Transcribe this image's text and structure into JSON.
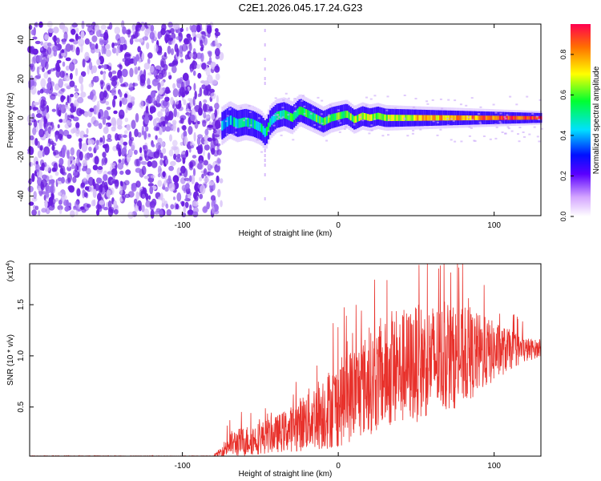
{
  "title": "C2E1.2026.045.17.24.G23",
  "chart_data": [
    {
      "type": "heatmap",
      "name": "spectrogram",
      "xlabel": "Height of straight line (km)",
      "ylabel": "Frequency (Hz)",
      "xlim": [
        -198,
        130
      ],
      "ylim": [
        -50,
        48
      ],
      "xticks": [
        -100,
        0,
        100
      ],
      "yticks": [
        40,
        20,
        0,
        -20,
        -40
      ],
      "noise_region_x": [
        -198,
        -75
      ],
      "signal_onset_x": -75,
      "dropout_line_x": -47,
      "centerline_freq": [
        [
          -75,
          -4
        ],
        [
          -70,
          -1
        ],
        [
          -65,
          -3
        ],
        [
          -60,
          -2
        ],
        [
          -55,
          -3
        ],
        [
          -50,
          -5
        ],
        [
          -47,
          -8
        ],
        [
          -44,
          -2
        ],
        [
          -40,
          1
        ],
        [
          -35,
          2
        ],
        [
          -30,
          0
        ],
        [
          -25,
          4
        ],
        [
          -20,
          2
        ],
        [
          -15,
          0
        ],
        [
          -10,
          -2
        ],
        [
          -5,
          0
        ],
        [
          0,
          1
        ],
        [
          5,
          2
        ],
        [
          10,
          -1
        ],
        [
          15,
          1
        ],
        [
          20,
          0
        ],
        [
          25,
          1
        ],
        [
          30,
          0
        ],
        [
          40,
          0
        ],
        [
          60,
          0
        ],
        [
          80,
          0
        ],
        [
          100,
          0
        ],
        [
          130,
          0
        ]
      ]
    },
    {
      "type": "line",
      "name": "snr",
      "xlabel": "Height of straight line (km)",
      "ylabel": "SNR (10 * v/v)",
      "multiplier": "(x10",
      "multiplier_exp": "4",
      "multiplier_close": ")",
      "xlim": [
        -198,
        130
      ],
      "ylim": [
        0.02,
        1.9
      ],
      "xticks": [
        -100,
        0,
        100
      ],
      "yticks": [
        0.5,
        1.0,
        1.5
      ],
      "series": [
        {
          "name": "SNR",
          "color": "#e8312b",
          "envelope": {
            "x": [
              -198,
              -80,
              -75,
              -70,
              -60,
              -50,
              -40,
              -30,
              -20,
              -10,
              0,
              10,
              20,
              30,
              40,
              50,
              60,
              70,
              80,
              90,
              100,
              110,
              120,
              130
            ],
            "base": [
              0.02,
              0.02,
              0.05,
              0.1,
              0.12,
              0.15,
              0.18,
              0.22,
              0.28,
              0.34,
              0.4,
              0.5,
              0.58,
              0.65,
              0.7,
              0.75,
              0.8,
              0.82,
              0.85,
              0.9,
              0.95,
              1.0,
              1.02,
              1.05
            ],
            "amp": [
              0.005,
              0.005,
              0.1,
              0.25,
              0.3,
              0.32,
              0.36,
              0.45,
              0.6,
              0.75,
              0.85,
              0.95,
              1.0,
              1.05,
              1.1,
              1.15,
              1.1,
              1.05,
              0.95,
              0.8,
              0.6,
              0.4,
              0.25,
              0.15
            ]
          }
        }
      ]
    }
  ],
  "colorbar": {
    "label": "Normalized spectral amplitude",
    "range": [
      0,
      0.95
    ],
    "ticks": [
      0.0,
      0.2,
      0.4,
      0.6,
      0.8
    ]
  }
}
